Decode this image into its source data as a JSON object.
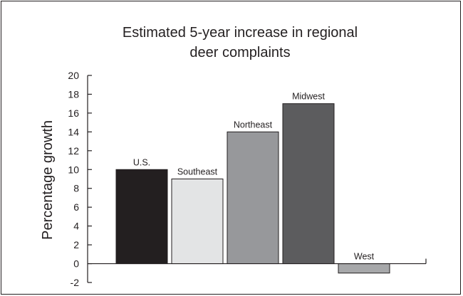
{
  "chart_data": {
    "type": "bar",
    "title_lines": [
      "Estimated 5-year increase in regional",
      "deer complaints"
    ],
    "title": "Estimated 5-year increase in regional deer complaints",
    "xlabel": "",
    "ylabel": "Percentage growth",
    "categories": [
      "U.S.",
      "Southeast",
      "Northeast",
      "Midwest",
      "West"
    ],
    "values": [
      10,
      9,
      14,
      17,
      -1
    ],
    "colors": [
      "#231f20",
      "#e3e4e5",
      "#97989b",
      "#5c5c5e",
      "#a7a8aa"
    ],
    "ylim": [
      -2,
      20
    ],
    "yticks": [
      "20",
      "18",
      "16",
      "14",
      "12",
      "10",
      "8",
      "6",
      "4",
      "2",
      "0",
      "-2"
    ],
    "legend": false,
    "grid": false
  }
}
